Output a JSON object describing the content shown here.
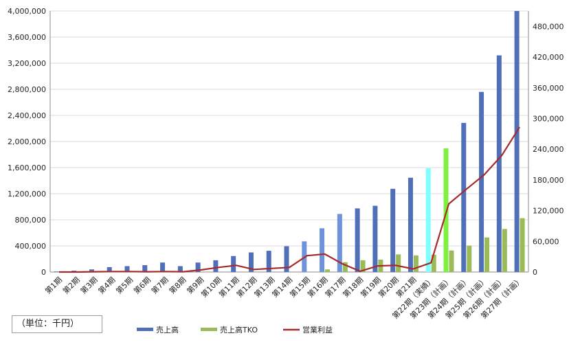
{
  "unit_label": "（単位：千円）",
  "chart_data": {
    "type": "bar",
    "categories": [
      "第1期",
      "第2期",
      "第3期",
      "第4期",
      "第5期",
      "第6期",
      "第7期",
      "第8期",
      "第9期",
      "第10期",
      "第11期",
      "第12期",
      "第13期",
      "第14期",
      "第15期",
      "第16期",
      "第17期",
      "第18期",
      "第19期",
      "第20期",
      "第21期",
      "第22期（実績）",
      "第23期（計画）",
      "第24期（計画）",
      "第25期（計画）",
      "第26期（計画）",
      "第27期（計画）"
    ],
    "series": [
      {
        "name": "売上高",
        "type": "bar",
        "axis": "left",
        "color": "#4F6FB8",
        "values": [
          8000,
          20000,
          40000,
          75000,
          90000,
          105000,
          145000,
          90000,
          145000,
          180000,
          245000,
          300000,
          325000,
          395000,
          470000,
          670000,
          890000,
          975000,
          1015000,
          1275000,
          1445000,
          1590000,
          1895000,
          2285000,
          2760000,
          3320000,
          4000000
        ],
        "point_colors": {
          "14": "#6D93DC",
          "15": "#6D93DC",
          "16": "#6D93DC",
          "21": "#7FFFFF",
          "22": "#80F040"
        }
      },
      {
        "name": "売上高TKO",
        "type": "bar",
        "axis": "left",
        "color": "#9BBB59",
        "values": [
          0,
          0,
          0,
          0,
          0,
          0,
          0,
          0,
          0,
          0,
          0,
          0,
          0,
          0,
          0,
          40000,
          150000,
          180000,
          190000,
          270000,
          255000,
          265000,
          330000,
          405000,
          530000,
          660000,
          825000
        ]
      },
      {
        "name": "営業利益",
        "type": "line",
        "axis": "right",
        "color": "#A52A2A",
        "values": [
          0,
          0,
          500,
          1000,
          1000,
          500,
          1000,
          500,
          4000,
          9000,
          13000,
          5000,
          7000,
          9000,
          32000,
          35000,
          16000,
          1500,
          12000,
          13000,
          6000,
          18000,
          133000,
          162000,
          190000,
          228000,
          283000
        ]
      }
    ],
    "y_left": {
      "min": 0,
      "max": 4000000,
      "step": 400000
    },
    "y_right": {
      "min": 0,
      "max": 510000,
      "step": 60000
    },
    "grid": true,
    "legend_position": "bottom"
  }
}
